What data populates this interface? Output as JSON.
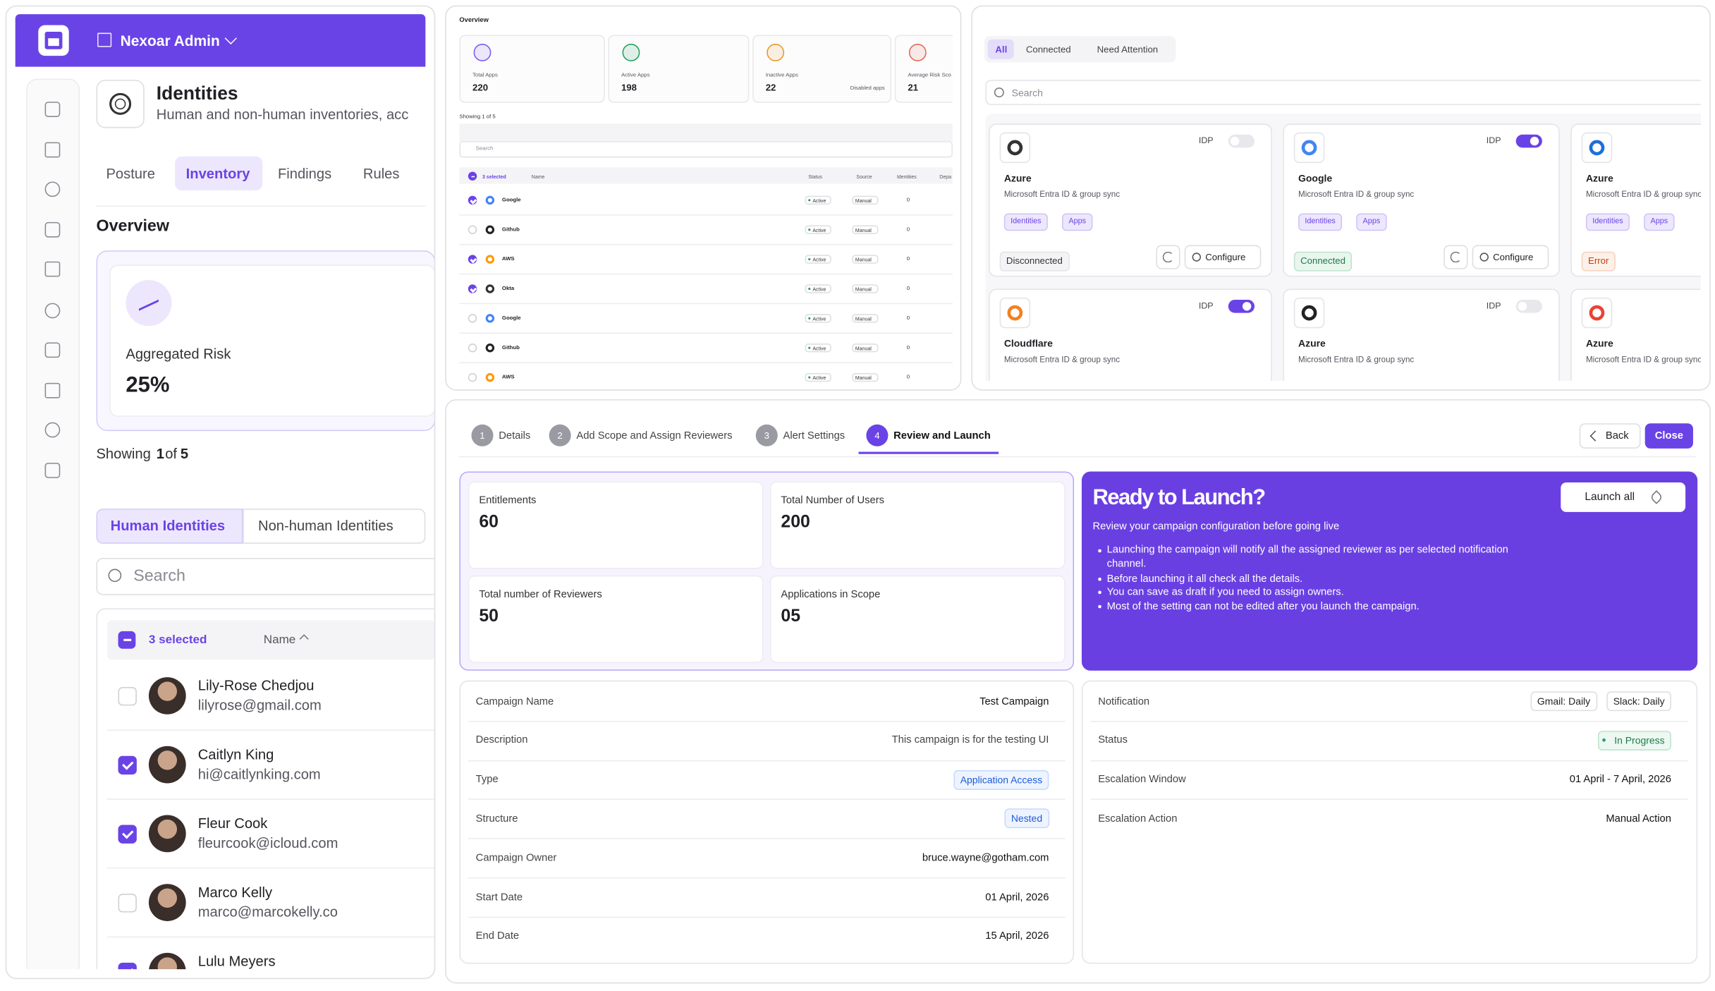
{
  "left": {
    "brand": "Nexoar Admin",
    "page_title": "Identities",
    "page_subtitle": "Human and non-human inventories, acc",
    "tabs": [
      "Posture",
      "Inventory",
      "Findings",
      "Rules"
    ],
    "overview": "Overview",
    "risk_label": "Aggregated Risk",
    "risk_value": "25%",
    "showing": [
      "Showing",
      "1",
      "of",
      "5"
    ],
    "identity_tabs": [
      "Human Identities",
      "Non-human Identities"
    ],
    "search": "Search",
    "selected": "3 selected",
    "name_col": "Name",
    "rows": [
      {
        "name": "Lily-Rose Chedjou",
        "email": "lilyrose@gmail.com",
        "checked": false
      },
      {
        "name": "Caitlyn King",
        "email": "hi@caitlynking.com",
        "checked": true
      },
      {
        "name": "Fleur Cook",
        "email": "fleurcook@icloud.com",
        "checked": true
      },
      {
        "name": "Marco Kelly",
        "email": "marco@marcokelly.co",
        "checked": false
      },
      {
        "name": "Lulu Meyers",
        "email": "",
        "checked": true
      }
    ]
  },
  "apps": {
    "overview": "Overview",
    "stats": [
      {
        "label": "Total Apps",
        "value": "220",
        "color": "#7c5cf0"
      },
      {
        "label": "Active Apps",
        "value": "198",
        "color": "#22a05a"
      },
      {
        "label": "Inactive Apps",
        "value": "22",
        "color": "#e79a2b",
        "note": "Disabled apps"
      },
      {
        "label": "Average Risk Sco",
        "value": "21",
        "color": "#e06a5a"
      }
    ],
    "showing": "Showing 1 of 5",
    "search": "Search",
    "columns": [
      "3 selected",
      "Name",
      "Status",
      "Source",
      "Identities",
      "Depa"
    ],
    "rows": [
      {
        "name": "Google",
        "status": "Active",
        "source": "Manual",
        "identities": "0",
        "checked": true,
        "color": "#4285f4"
      },
      {
        "name": "Github",
        "status": "Active",
        "source": "Manual",
        "identities": "0",
        "checked": false,
        "color": "#222222"
      },
      {
        "name": "AWS",
        "status": "Active",
        "source": "Manual",
        "identities": "0",
        "checked": true,
        "color": "#ff9900"
      },
      {
        "name": "Okta",
        "status": "Active",
        "source": "Manual",
        "identities": "0",
        "checked": true,
        "color": "#333333"
      },
      {
        "name": "Google",
        "status": "Active",
        "source": "Manual",
        "identities": "0",
        "checked": false,
        "color": "#4285f4"
      },
      {
        "name": "Github",
        "status": "Active",
        "source": "Manual",
        "identities": "0",
        "checked": false,
        "color": "#222222"
      },
      {
        "name": "AWS",
        "status": "Active",
        "source": "Manual",
        "identities": "0",
        "checked": false,
        "color": "#ff9900"
      }
    ]
  },
  "connectors": {
    "filters": [
      "All",
      "Connected",
      "Need Attention"
    ],
    "search": "Search",
    "cards": [
      {
        "name": "Azure",
        "description": "Microsoft Entra ID & group sync",
        "idp": "IDP",
        "enabled": false,
        "tags": [
          "Identities",
          "Apps"
        ],
        "status": "Disconnected",
        "action": "Configure",
        "color": "#333333"
      },
      {
        "name": "Google",
        "description": "Microsoft Entra ID & group sync",
        "idp": "IDP",
        "enabled": true,
        "tags": [
          "Identities",
          "Apps"
        ],
        "status": "Connected",
        "action": "Configure",
        "color": "#4285f4"
      },
      {
        "name": "Azure",
        "description": "Microsoft Entra ID & group sync",
        "tags": [
          "Identities",
          "Apps"
        ],
        "status": "Error",
        "color": "#1e6fd9"
      },
      {
        "name": "Cloudflare",
        "description": "Microsoft Entra ID & group sync",
        "idp": "IDP",
        "enabled": true,
        "color": "#f38020"
      },
      {
        "name": "Azure",
        "description": "Microsoft Entra ID & group sync",
        "idp": "IDP",
        "enabled": false,
        "color": "#222222"
      },
      {
        "name": "Azure",
        "description": "Microsoft Entra ID & group sync",
        "color": "#ea4335"
      }
    ]
  },
  "campaign": {
    "steps": [
      {
        "number": "1",
        "label": "Details"
      },
      {
        "number": "2",
        "label": "Add Scope and Assign Reviewers"
      },
      {
        "number": "3",
        "label": "Alert Settings"
      },
      {
        "number": "4",
        "label": "Review and Launch"
      }
    ],
    "back": "Back",
    "close": "Close",
    "stats": [
      {
        "label": "Entitlements",
        "value": "60"
      },
      {
        "label": "Total Number of Users",
        "value": "200"
      },
      {
        "label": "Total number of Reviewers",
        "value": "50"
      },
      {
        "label": "Applications in Scope",
        "value": "05"
      }
    ],
    "launch": {
      "title": "Ready to Launch?",
      "subtitle": "Review your campaign configuration before going live",
      "bullets": [
        "Launching the campaign will notify all the assigned reviewer as per selected notification channel.",
        "Before launching it all check all the details.",
        "You can save as draft if you need to assign owners.",
        "Most of the setting can not be edited after you launch the campaign."
      ],
      "button": "Launch all"
    },
    "details": [
      {
        "label": "Campaign Name",
        "value": "Test Campaign"
      },
      {
        "label": "Description",
        "value": "This campaign is for the testing UI"
      },
      {
        "label": "Type",
        "value": "Application Access",
        "pill": "blue"
      },
      {
        "label": "Structure",
        "value": "Nested",
        "pill": "blue"
      },
      {
        "label": "Campaign Owner",
        "value": "bruce.wayne@gotham.com"
      },
      {
        "label": "Start Date",
        "value": "01 April, 2026"
      },
      {
        "label": "End Date",
        "value": "15 April, 2026"
      }
    ],
    "settings": [
      {
        "label": "Notification",
        "values": [
          "Gmail: Daily",
          "Slack: Daily"
        ]
      },
      {
        "label": "Status",
        "value": "In Progress",
        "pill": "green"
      },
      {
        "label": "Escalation Window",
        "value": "01 April - 7 April, 2026"
      },
      {
        "label": "Escalation Action",
        "value": "Manual Action"
      }
    ]
  }
}
